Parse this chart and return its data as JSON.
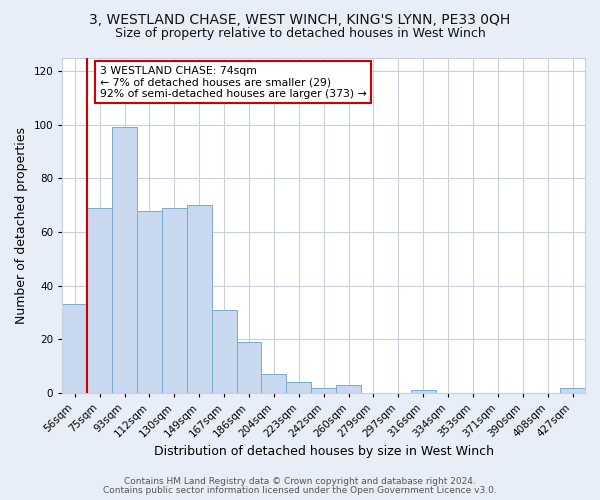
{
  "title": "3, WESTLAND CHASE, WEST WINCH, KING'S LYNN, PE33 0QH",
  "subtitle": "Size of property relative to detached houses in West Winch",
  "xlabel": "Distribution of detached houses by size in West Winch",
  "ylabel": "Number of detached properties",
  "bar_color": "#c8d8ee",
  "bar_edge_color": "#7aaad0",
  "categories": [
    "56sqm",
    "75sqm",
    "93sqm",
    "112sqm",
    "130sqm",
    "149sqm",
    "167sqm",
    "186sqm",
    "204sqm",
    "223sqm",
    "242sqm",
    "260sqm",
    "279sqm",
    "297sqm",
    "316sqm",
    "334sqm",
    "353sqm",
    "371sqm",
    "390sqm",
    "408sqm",
    "427sqm"
  ],
  "values": [
    33,
    69,
    99,
    68,
    69,
    70,
    31,
    19,
    7,
    4,
    2,
    3,
    0,
    0,
    1,
    0,
    0,
    0,
    0,
    0,
    2
  ],
  "ylim": [
    0,
    125
  ],
  "yticks": [
    0,
    20,
    40,
    60,
    80,
    100,
    120
  ],
  "annotation_text": "3 WESTLAND CHASE: 74sqm\n← 7% of detached houses are smaller (29)\n92% of semi-detached houses are larger (373) →",
  "annotation_box_color": "#ffffff",
  "annotation_box_edge_color": "#cc0000",
  "red_line_color": "#cc0000",
  "footer_line1": "Contains HM Land Registry data © Crown copyright and database right 2024.",
  "footer_line2": "Contains public sector information licensed under the Open Government Licence v3.0.",
  "background_color": "#e8eef8",
  "plot_background_color": "#ffffff",
  "grid_color": "#c8d0e0",
  "title_fontsize": 10,
  "subtitle_fontsize": 9,
  "tick_fontsize": 7.5,
  "label_fontsize": 9,
  "footer_fontsize": 6.5
}
